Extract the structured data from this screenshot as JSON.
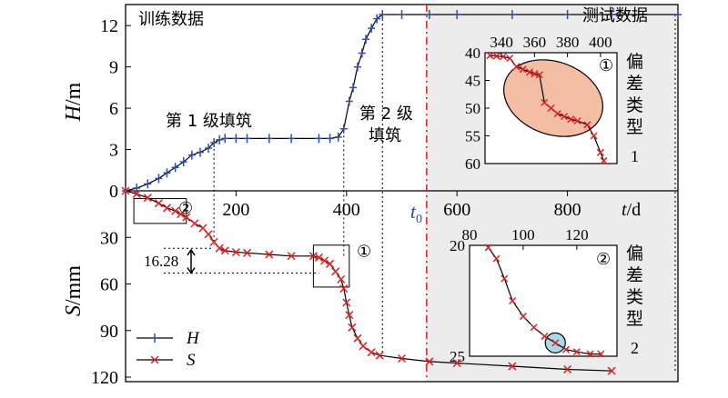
{
  "chart_data": {
    "type": "line",
    "x_axis": {
      "label_var": "t",
      "label_unit": "/d",
      "ticks": [
        200,
        400,
        600,
        800
      ],
      "range": [
        0,
        1000
      ]
    },
    "h_axis": {
      "label_var": "H",
      "label_unit": "/m",
      "ticks": [
        0,
        3,
        6,
        9,
        12
      ],
      "range": [
        0,
        13
      ]
    },
    "s_axis": {
      "label_var": "S",
      "label_unit": "/mm",
      "ticks": [
        0,
        30,
        60,
        90,
        120
      ],
      "range": [
        0,
        120
      ]
    },
    "t0_label": "t",
    "t0_sub": "0",
    "t0_value": 545,
    "region_labels": {
      "train": "训练数据",
      "test": "测试数据"
    },
    "stage_labels": {
      "stage1": "第 1 级填筑",
      "stage2_line1": "第 2 级",
      "stage2_line2": "填筑"
    },
    "annotation_value": "16.28",
    "legend": [
      {
        "name": "H",
        "color": "#2f4fa8",
        "marker": "+"
      },
      {
        "name": "S",
        "color": "#e02020",
        "marker": "x"
      }
    ],
    "series": [
      {
        "name": "H",
        "color": "#2f4fa8",
        "points": [
          [
            0,
            0
          ],
          [
            20,
            0.2
          ],
          [
            40,
            0.5
          ],
          [
            60,
            0.9
          ],
          [
            75,
            1.3
          ],
          [
            90,
            1.7
          ],
          [
            105,
            2.1
          ],
          [
            120,
            2.6
          ],
          [
            135,
            2.8
          ],
          [
            150,
            3.1
          ],
          [
            160,
            3.5
          ],
          [
            170,
            3.7
          ],
          [
            180,
            3.8
          ],
          [
            200,
            3.8
          ],
          [
            220,
            3.8
          ],
          [
            260,
            3.8
          ],
          [
            300,
            3.8
          ],
          [
            350,
            3.8
          ],
          [
            370,
            3.8
          ],
          [
            385,
            3.9
          ],
          [
            395,
            4.5
          ],
          [
            405,
            6.5
          ],
          [
            412,
            7.5
          ],
          [
            420,
            9
          ],
          [
            428,
            10
          ],
          [
            435,
            11
          ],
          [
            445,
            11.8
          ],
          [
            455,
            12.5
          ],
          [
            465,
            12.8
          ],
          [
            500,
            12.8
          ],
          [
            550,
            12.8
          ],
          [
            600,
            12.8
          ],
          [
            700,
            12.8
          ],
          [
            800,
            12.8
          ],
          [
            880,
            12.8
          ],
          [
            1000,
            12.8
          ]
        ]
      },
      {
        "name": "S",
        "color": "#e02020",
        "points": [
          [
            0,
            0
          ],
          [
            20,
            2
          ],
          [
            40,
            4.5
          ],
          [
            60,
            8
          ],
          [
            75,
            11
          ],
          [
            90,
            13
          ],
          [
            100,
            15
          ],
          [
            110,
            17
          ],
          [
            125,
            21
          ],
          [
            140,
            24
          ],
          [
            150,
            28
          ],
          [
            160,
            33
          ],
          [
            170,
            37
          ],
          [
            180,
            38.5
          ],
          [
            200,
            39.5
          ],
          [
            220,
            40
          ],
          [
            260,
            41
          ],
          [
            300,
            42
          ],
          [
            340,
            42
          ],
          [
            350,
            43
          ],
          [
            360,
            45
          ],
          [
            370,
            47
          ],
          [
            380,
            52
          ],
          [
            390,
            57
          ],
          [
            395,
            63
          ],
          [
            400,
            72
          ],
          [
            405,
            80
          ],
          [
            410,
            88
          ],
          [
            420,
            95
          ],
          [
            430,
            100
          ],
          [
            445,
            104
          ],
          [
            460,
            106
          ],
          [
            500,
            108
          ],
          [
            550,
            110
          ],
          [
            600,
            111
          ],
          [
            700,
            113
          ],
          [
            800,
            115
          ],
          [
            880,
            116
          ]
        ]
      }
    ],
    "inset1": {
      "circled_label": "①",
      "side_label": [
        "偏",
        "差",
        "类",
        "型"
      ],
      "side_num": "1",
      "x_ticks": [
        340,
        360,
        380,
        400
      ],
      "x_range": [
        330,
        410
      ],
      "y_ticks": [
        40,
        45,
        50,
        55,
        60
      ],
      "y_range": [
        40,
        60
      ],
      "points": [
        [
          333,
          40.5
        ],
        [
          337,
          40.6
        ],
        [
          341,
          40.7
        ],
        [
          345,
          41
        ],
        [
          349,
          42.5
        ],
        [
          353,
          43
        ],
        [
          357,
          43.5
        ],
        [
          360,
          43.8
        ],
        [
          363,
          44
        ],
        [
          366,
          49
        ],
        [
          370,
          50
        ],
        [
          374,
          51
        ],
        [
          378,
          51.5
        ],
        [
          382,
          52
        ],
        [
          386,
          52.3
        ],
        [
          392,
          53
        ],
        [
          396,
          55
        ],
        [
          400,
          58
        ],
        [
          402,
          59.5
        ]
      ]
    },
    "inset2": {
      "circled_label": "②",
      "side_label": [
        "偏",
        "差",
        "类",
        "型"
      ],
      "side_num": "2",
      "x_ticks": [
        80,
        100,
        120
      ],
      "x_range": [
        80,
        135
      ],
      "y_ticks": [
        20,
        25
      ],
      "y_range": [
        20,
        25
      ],
      "points": [
        [
          87,
          20.1
        ],
        [
          90,
          20.6
        ],
        [
          93,
          21.5
        ],
        [
          96,
          22.5
        ],
        [
          100,
          23.2
        ],
        [
          104,
          23.7
        ],
        [
          108,
          24.1
        ],
        [
          112,
          24.4
        ],
        [
          116,
          24.7
        ],
        [
          120,
          24.8
        ],
        [
          125,
          24.9
        ],
        [
          129,
          24.9
        ]
      ]
    },
    "box_labels": {
      "box1": "①",
      "box2": "②"
    }
  }
}
